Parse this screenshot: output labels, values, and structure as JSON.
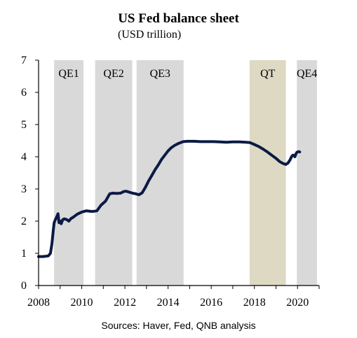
{
  "chart_data": {
    "type": "line",
    "title": "US Fed balance sheet",
    "subtitle": "(USD trillion)",
    "source": "Sources: Haver, Fed, QNB analysis",
    "xlim": [
      2008,
      2021
    ],
    "ylim": [
      0,
      7
    ],
    "xticks": [
      "2008",
      "2010",
      "2012",
      "2014",
      "2016",
      "2018",
      "2020"
    ],
    "xtick_values": [
      2008,
      2010,
      2012,
      2014,
      2016,
      2018,
      2020
    ],
    "yticks": [
      "0",
      "1",
      "2",
      "3",
      "4",
      "5",
      "6",
      "7"
    ],
    "ytick_values": [
      0,
      1,
      2,
      3,
      4,
      5,
      6,
      7
    ],
    "grid": false,
    "shaded_periods": [
      {
        "label": "QE1",
        "start": 2008.72,
        "end": 2010.08,
        "color": "#d9d9d9"
      },
      {
        "label": "QE2",
        "start": 2010.62,
        "end": 2012.34,
        "color": "#d9d9d9"
      },
      {
        "label": "QE3",
        "start": 2012.54,
        "end": 2014.72,
        "color": "#d9d9d9"
      },
      {
        "label": "QT",
        "start": 2017.78,
        "end": 2019.46,
        "color": "#ddd9c3"
      },
      {
        "label": "QE4",
        "start": 2019.97,
        "end": 2020.9,
        "color": "#d9d9d9"
      }
    ],
    "series": [
      {
        "color": "#0b1a45",
        "x": [
          2008.0,
          2008.2,
          2008.45,
          2008.55,
          2008.62,
          2008.68,
          2008.72,
          2008.78,
          2008.85,
          2008.9,
          2008.95,
          2009.0,
          2009.05,
          2009.12,
          2009.2,
          2009.3,
          2009.4,
          2009.5,
          2009.6,
          2009.7,
          2009.8,
          2009.9,
          2010.0,
          2010.2,
          2010.5,
          2010.7,
          2010.9,
          2011.1,
          2011.3,
          2011.45,
          2011.6,
          2011.8,
          2011.95,
          2012.05,
          2012.2,
          2012.35,
          2012.5,
          2012.65,
          2012.8,
          2012.95,
          2013.1,
          2013.25,
          2013.4,
          2013.55,
          2013.7,
          2013.85,
          2014.0,
          2014.15,
          2014.3,
          2014.5,
          2014.7,
          2014.9,
          2015.2,
          2015.5,
          2015.8,
          2016.1,
          2016.4,
          2016.7,
          2017.0,
          2017.3,
          2017.6,
          2017.8,
          2018.0,
          2018.2,
          2018.4,
          2018.6,
          2018.8,
          2019.0,
          2019.15,
          2019.3,
          2019.45,
          2019.55,
          2019.65,
          2019.72,
          2019.78,
          2019.83,
          2019.88,
          2019.92,
          2019.96,
          2020.0,
          2020.05,
          2020.1
        ],
        "y": [
          0.9,
          0.9,
          0.92,
          1.0,
          1.3,
          1.7,
          1.95,
          2.05,
          2.15,
          2.23,
          1.95,
          2.0,
          1.92,
          2.05,
          2.07,
          2.05,
          2.0,
          2.08,
          2.12,
          2.17,
          2.22,
          2.25,
          2.28,
          2.32,
          2.3,
          2.32,
          2.5,
          2.62,
          2.85,
          2.87,
          2.86,
          2.87,
          2.92,
          2.93,
          2.9,
          2.87,
          2.85,
          2.82,
          2.88,
          3.05,
          3.25,
          3.42,
          3.6,
          3.75,
          3.92,
          4.05,
          4.18,
          4.28,
          4.35,
          4.42,
          4.47,
          4.48,
          4.48,
          4.47,
          4.47,
          4.47,
          4.46,
          4.45,
          4.46,
          4.46,
          4.45,
          4.44,
          4.38,
          4.32,
          4.24,
          4.15,
          4.05,
          3.95,
          3.86,
          3.8,
          3.76,
          3.8,
          3.9,
          4.0,
          4.05,
          4.05,
          4.0,
          4.08,
          4.13,
          4.15,
          4.16,
          4.15
        ]
      }
    ]
  }
}
